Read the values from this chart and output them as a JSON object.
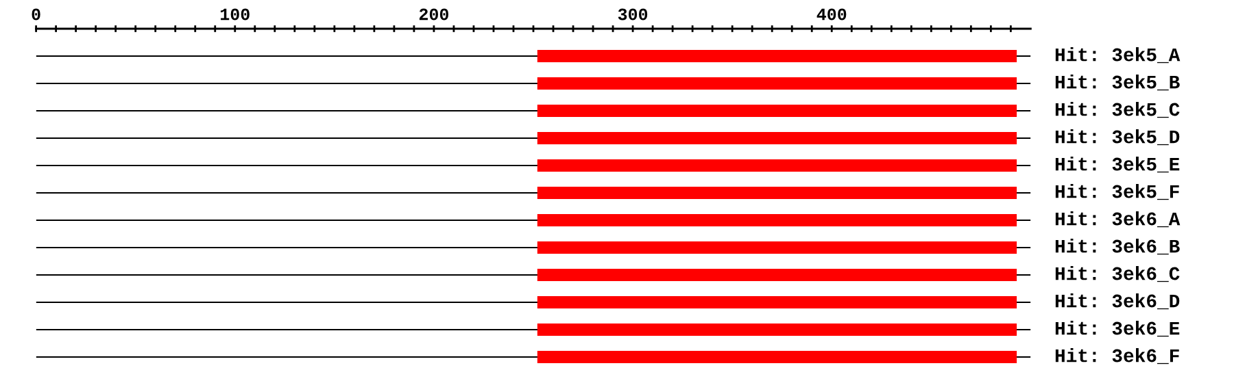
{
  "chart_data": {
    "type": "bar",
    "orientation": "horizontal",
    "categories": [
      "Hit: 3ek5_A",
      "Hit: 3ek5_B",
      "Hit: 3ek5_C",
      "Hit: 3ek5_D",
      "Hit: 3ek5_E",
      "Hit: 3ek5_F",
      "Hit: 3ek6_A",
      "Hit: 3ek6_B",
      "Hit: 3ek6_C",
      "Hit: 3ek6_D",
      "Hit: 3ek6_E",
      "Hit: 3ek6_F"
    ],
    "series": [
      {
        "color": "#000000",
        "base": [
          0,
          0,
          0,
          0,
          0,
          0,
          0,
          0,
          0,
          0,
          0,
          0
        ],
        "values": [
          500,
          500,
          500,
          500,
          500,
          500,
          500,
          500,
          500,
          500,
          500,
          500
        ]
      },
      {
        "color": "#ff0000",
        "base": [
          252,
          252,
          252,
          252,
          252,
          252,
          252,
          252,
          252,
          252,
          252,
          252
        ],
        "values": [
          241,
          241,
          241,
          241,
          241,
          241,
          241,
          241,
          241,
          241,
          241,
          241
        ]
      }
    ],
    "xlim": [
      0,
      500
    ],
    "xticks": [
      0,
      {
        "value": 10,
        "label": null
      },
      {
        "value": 20,
        "label": null
      },
      {
        "value": 30,
        "label": null
      },
      {
        "value": 40,
        "label": null
      },
      {
        "value": 50,
        "label": null
      },
      {
        "value": 60,
        "label": null
      },
      {
        "value": 70,
        "label": null
      },
      {
        "value": 80,
        "label": null
      },
      {
        "value": 90,
        "label": null
      },
      100,
      {
        "value": 110,
        "label": null
      },
      {
        "value": 120,
        "label": null
      },
      {
        "value": 130,
        "label": null
      },
      {
        "value": 140,
        "label": null
      },
      {
        "value": 150,
        "label": null
      },
      {
        "value": 160,
        "label": null
      },
      {
        "value": 170,
        "label": null
      },
      {
        "value": 180,
        "label": null
      },
      {
        "value": 190,
        "label": null
      },
      200,
      {
        "value": 210,
        "label": null
      },
      {
        "value": 220,
        "label": null
      },
      {
        "value": 230,
        "label": null
      },
      {
        "value": 240,
        "label": null
      },
      {
        "value": 250,
        "label": null
      },
      {
        "value": 260,
        "label": null
      },
      {
        "value": 270,
        "label": null
      },
      {
        "value": 280,
        "label": null
      },
      {
        "value": 290,
        "label": null
      },
      300,
      {
        "value": 310,
        "label": null
      },
      {
        "value": 320,
        "label": null
      },
      {
        "value": 330,
        "label": null
      },
      {
        "value": 340,
        "label": null
      },
      {
        "value": 350,
        "label": null
      },
      {
        "value": 360,
        "label": null
      },
      {
        "value": 370,
        "label": null
      },
      {
        "value": 380,
        "label": null
      },
      {
        "value": 390,
        "label": null
      },
      400,
      {
        "value": 410,
        "label": null
      },
      {
        "value": 420,
        "label": null
      },
      {
        "value": 430,
        "label": null
      },
      {
        "value": 440,
        "label": null
      },
      {
        "value": 450,
        "label": null
      },
      {
        "value": 460,
        "label": null
      },
      {
        "value": 470,
        "label": null
      },
      {
        "value": 480,
        "label": null
      },
      {
        "value": 490,
        "label": null
      }
    ],
    "grid": false
  }
}
